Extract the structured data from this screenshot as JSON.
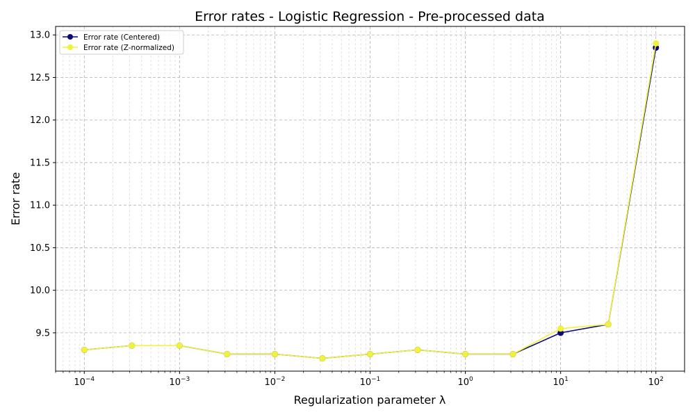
{
  "chart_data": {
    "type": "line",
    "title": "Error rates - Logistic Regression - Pre-processed data",
    "xlabel": "Regularization parameter λ",
    "ylabel": "Error rate",
    "xscale": "log",
    "xlim": [
      5e-05,
      200
    ],
    "ylim": [
      9.05,
      13.1
    ],
    "grid": "both",
    "legend_position": "top-left",
    "x": [
      0.0001,
      0.000316,
      0.001,
      0.00316,
      0.01,
      0.0316,
      0.1,
      0.316,
      1,
      3.16,
      10,
      31.6,
      100
    ],
    "x_ticks": [
      {
        "value": 0.0001,
        "base": "10",
        "exp": "−4"
      },
      {
        "value": 0.001,
        "base": "10",
        "exp": "−3"
      },
      {
        "value": 0.01,
        "base": "10",
        "exp": "−2"
      },
      {
        "value": 0.1,
        "base": "10",
        "exp": "−1"
      },
      {
        "value": 1,
        "base": "10",
        "exp": "0"
      },
      {
        "value": 10,
        "base": "10",
        "exp": "1"
      },
      {
        "value": 100,
        "base": "10",
        "exp": "2"
      }
    ],
    "y_ticks": [
      {
        "value": 9.5,
        "label": "9.5"
      },
      {
        "value": 10.0,
        "label": "10.0"
      },
      {
        "value": 10.5,
        "label": "10.5"
      },
      {
        "value": 11.0,
        "label": "11.0"
      },
      {
        "value": 11.5,
        "label": "11.5"
      },
      {
        "value": 12.0,
        "label": "12.0"
      },
      {
        "value": 12.5,
        "label": "12.5"
      },
      {
        "value": 13.0,
        "label": "13.0"
      }
    ],
    "series": [
      {
        "name": "Error rate (Centered)",
        "color": "#0a0a7a",
        "values": [
          9.3,
          9.35,
          9.35,
          9.25,
          9.25,
          9.2,
          9.25,
          9.3,
          9.25,
          9.25,
          9.5,
          9.6,
          12.85
        ]
      },
      {
        "name": "Error rate (Z-normalized)",
        "color": "#f2f23a",
        "values": [
          9.3,
          9.35,
          9.35,
          9.25,
          9.25,
          9.2,
          9.25,
          9.3,
          9.25,
          9.25,
          9.55,
          9.6,
          12.9
        ]
      }
    ]
  }
}
